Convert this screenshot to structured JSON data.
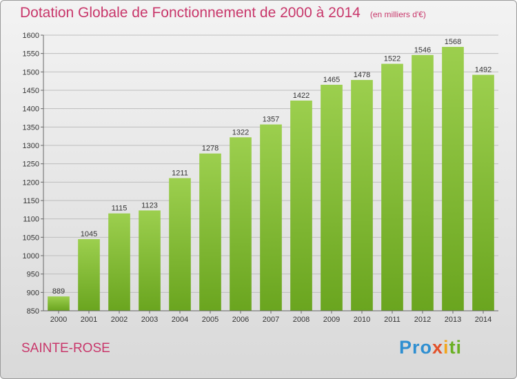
{
  "chart_data": {
    "type": "bar",
    "title": "Dotation Globale de Fonctionnement de 2000 à 2014",
    "subtitle": "(en milliers d'€)",
    "categories": [
      "2000",
      "2001",
      "2002",
      "2003",
      "2004",
      "2005",
      "2006",
      "2007",
      "2008",
      "2009",
      "2010",
      "2011",
      "2012",
      "2013",
      "2014"
    ],
    "values": [
      889,
      1045,
      1115,
      1123,
      1211,
      1278,
      1322,
      1357,
      1422,
      1465,
      1478,
      1522,
      1546,
      1568,
      1492
    ],
    "ylim": [
      850,
      1600
    ],
    "yticks": [
      850,
      900,
      950,
      1000,
      1050,
      1100,
      1150,
      1200,
      1250,
      1300,
      1350,
      1400,
      1450,
      1500,
      1550,
      1600
    ],
    "grid": true,
    "xlabel": "",
    "ylabel": ""
  },
  "commune": "SAINTE-ROSE",
  "logo": {
    "p1": "Pro",
    "p2": "x",
    "p3": "i",
    "p4": "ti"
  }
}
